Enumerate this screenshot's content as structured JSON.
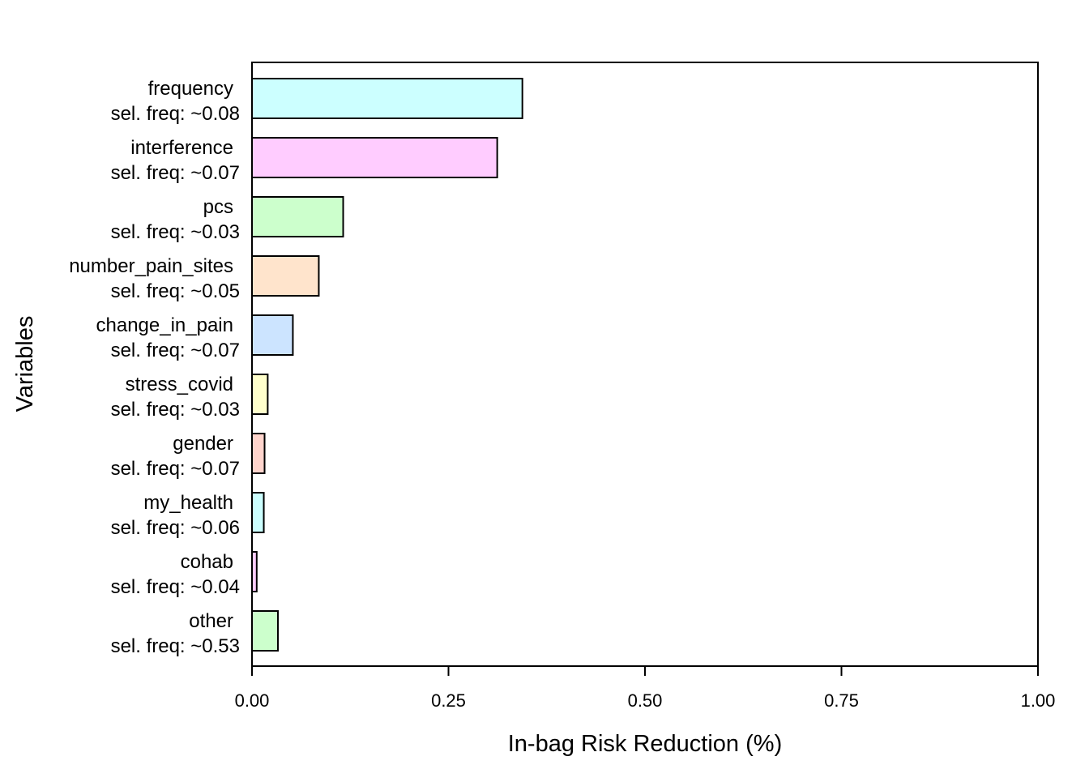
{
  "chart_data": {
    "type": "bar",
    "orientation": "horizontal",
    "title": "",
    "xlabel": "In-bag Risk Reduction (%)",
    "ylabel": "Variables",
    "xlim": [
      0,
      1
    ],
    "x_ticks": [
      "0.00",
      "0.25",
      "0.50",
      "0.75",
      "1.00"
    ],
    "grid": false,
    "categories": [
      "frequency",
      "interference",
      "pcs",
      "number_pain_sites",
      "change_in_pain",
      "stress_covid",
      "gender",
      "my_health",
      "cohab",
      "other"
    ],
    "sel_freq_labels": [
      "sel. freq: ~0.08",
      "sel. freq: ~0.07",
      "sel. freq: ~0.03",
      "sel. freq: ~0.05",
      "sel. freq: ~0.07",
      "sel. freq: ~0.03",
      "sel. freq: ~0.07",
      "sel. freq: ~0.06",
      "sel. freq: ~0.04",
      "sel. freq: ~0.53"
    ],
    "values": [
      0.344,
      0.312,
      0.116,
      0.085,
      0.052,
      0.02,
      0.016,
      0.015,
      0.006,
      0.033
    ],
    "colors": [
      "#ccffff",
      "#ffccff",
      "#ccffcc",
      "#ffe4cc",
      "#cce4ff",
      "#ffffcc",
      "#ffd4cc",
      "#ccffff",
      "#ffccff",
      "#ccffcc"
    ]
  }
}
